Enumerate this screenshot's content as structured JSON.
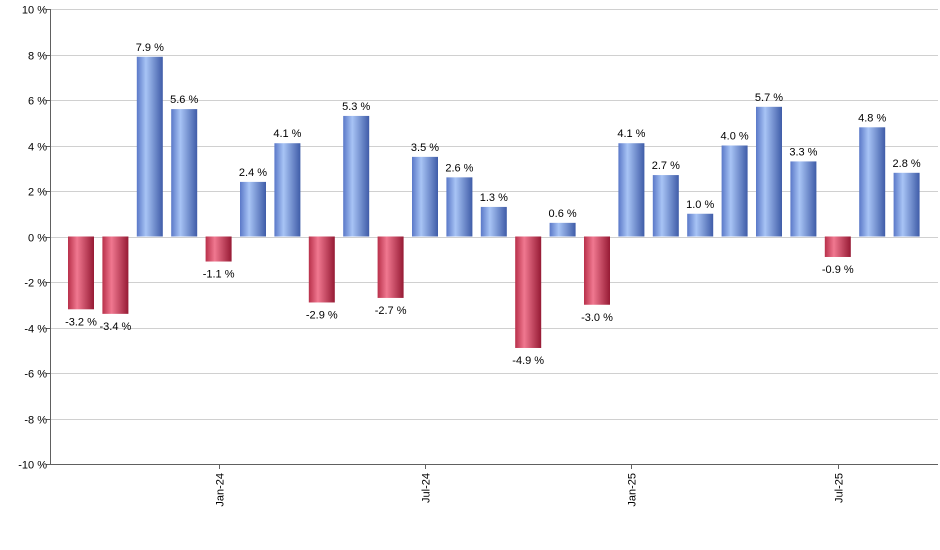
{
  "chart_data": {
    "type": "bar",
    "title": "",
    "xlabel": "",
    "ylabel": "",
    "ylim": [
      -10,
      10
    ],
    "y_ticks": [
      10,
      8,
      6,
      4,
      2,
      0,
      -2,
      -4,
      -6,
      -8,
      -10
    ],
    "y_tick_labels": [
      "10 %",
      "8 %",
      "6 %",
      "4 %",
      "2 %",
      "0 %",
      "-2 %",
      "-4 %",
      "-6 %",
      "-8 %",
      "-10 %"
    ],
    "x_tick_labels": [
      {
        "label": "Jan-24",
        "bar_index": 4
      },
      {
        "label": "Jul-24",
        "bar_index": 10
      },
      {
        "label": "Jan-25",
        "bar_index": 16
      },
      {
        "label": "Jul-25",
        "bar_index": 22
      }
    ],
    "values": [
      -3.2,
      -3.4,
      7.9,
      5.6,
      -1.1,
      2.4,
      4.1,
      -2.9,
      5.3,
      -2.7,
      3.5,
      2.6,
      1.3,
      -4.9,
      0.6,
      -3.0,
      4.1,
      2.7,
      1.0,
      4.0,
      5.7,
      3.3,
      -0.9,
      4.8,
      2.8
    ],
    "data_labels": [
      "-3.2 %",
      "-3.4 %",
      "7.9 %",
      "5.6 %",
      "-1.1 %",
      "2.4 %",
      "4.1 %",
      "-2.9 %",
      "5.3 %",
      "-2.7 %",
      "3.5 %",
      "2.6 %",
      "1.3 %",
      "-4.9 %",
      "0.6 %",
      "-3.0 %",
      "4.1 %",
      "2.7 %",
      "1.0 %",
      "4.0 %",
      "5.7 %",
      "3.3 %",
      "-0.9 %",
      "4.8 %",
      "2.8 %"
    ],
    "grid": true,
    "legend": "none",
    "colors": {
      "positive_light": "#a8c4f5",
      "positive_dark": "#4a6cc4",
      "negative_light": "#f07890",
      "negative_dark": "#a8203c",
      "grid": "#d0d0d0",
      "axis": "#606060"
    }
  }
}
